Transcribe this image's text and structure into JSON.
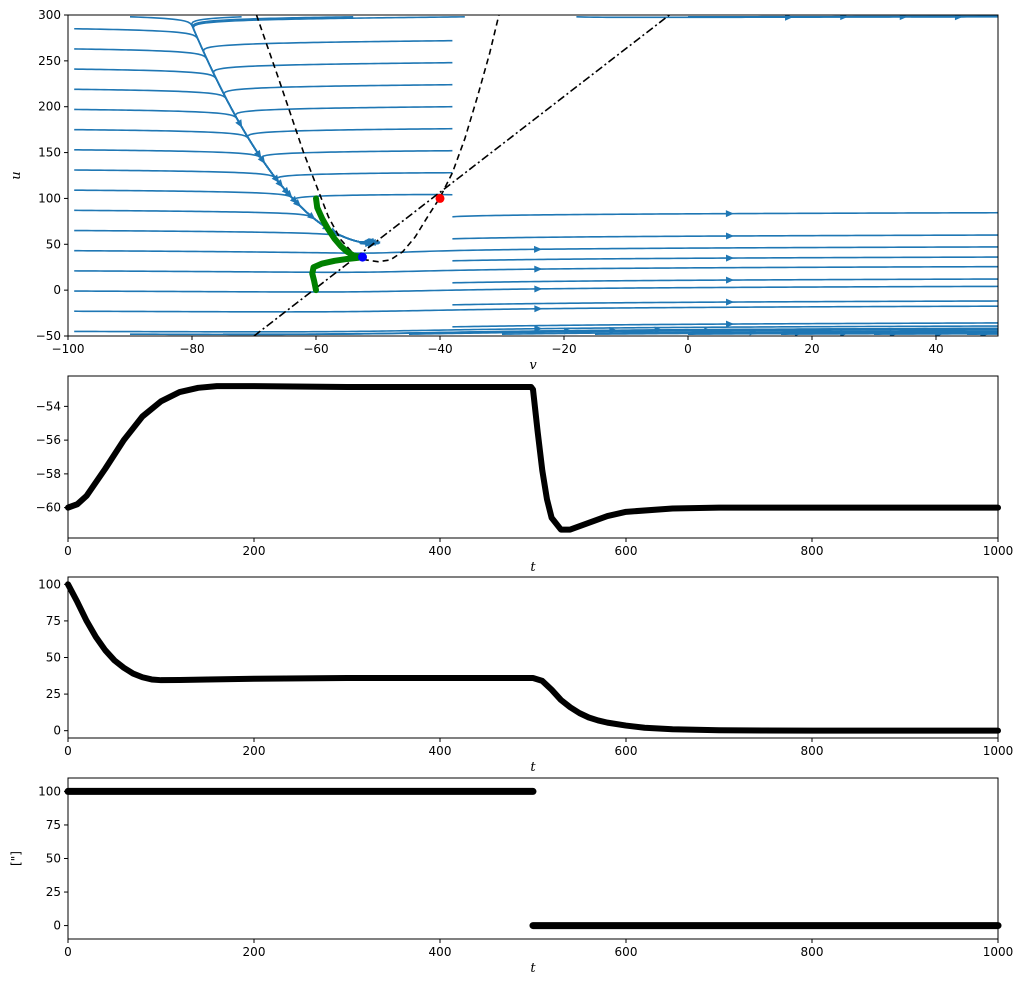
{
  "chart_data": [
    {
      "id": "phase",
      "type": "streamplot",
      "xlabel": "v",
      "ylabel": "u",
      "xlim": [
        -100,
        50
      ],
      "ylim": [
        -50,
        300
      ],
      "xticks": [
        -100,
        -80,
        -60,
        -40,
        -20,
        0,
        20,
        40
      ],
      "yticks": [
        -50,
        0,
        50,
        100,
        150,
        200,
        250,
        300
      ],
      "stream_color": "#1f77b4",
      "v_nullcline": {
        "style": "dashed",
        "color": "#000000",
        "points": [
          [
            -69.6,
            300
          ],
          [
            -66,
            230
          ],
          [
            -62,
            150
          ],
          [
            -58,
            80
          ],
          [
            -56,
            55
          ],
          [
            -54,
            40
          ],
          [
            -52,
            33
          ],
          [
            -50,
            31
          ],
          [
            -48,
            33
          ],
          [
            -46,
            42
          ],
          [
            -44,
            58
          ],
          [
            -42,
            80
          ],
          [
            -40,
            101
          ],
          [
            -38,
            128
          ],
          [
            -36,
            165
          ],
          [
            -34,
            210
          ],
          [
            -32,
            258
          ],
          [
            -30.5,
            300
          ]
        ]
      },
      "u_nullcline": {
        "style": "dashdot",
        "color": "#000000",
        "points": [
          [
            -70,
            -50
          ],
          [
            -3,
            300
          ]
        ]
      },
      "fixed_points": [
        {
          "v": -52.5,
          "u": 36,
          "color": "#0000ff"
        },
        {
          "v": -40,
          "u": 100,
          "color": "#ff0000"
        }
      ],
      "trajectory": {
        "color": "#008000",
        "points": [
          [
            -60,
            100
          ],
          [
            -59.8,
            90
          ],
          [
            -59,
            78
          ],
          [
            -58,
            66
          ],
          [
            -57,
            56
          ],
          [
            -56,
            48
          ],
          [
            -55,
            42
          ],
          [
            -54,
            38
          ],
          [
            -53,
            36.5
          ],
          [
            -52.5,
            36
          ],
          [
            -53.5,
            35
          ],
          [
            -55,
            34
          ],
          [
            -57,
            32
          ],
          [
            -59,
            29
          ],
          [
            -60.4,
            25
          ],
          [
            -60.6,
            18
          ],
          [
            -60.3,
            10
          ],
          [
            -60,
            0
          ]
        ]
      }
    },
    {
      "id": "v_t",
      "type": "line",
      "xlabel": "t",
      "ylabel": "",
      "xlim": [
        0,
        1000
      ],
      "ylim": [
        -61.8,
        -52.2
      ],
      "xticks": [
        0,
        200,
        400,
        600,
        800,
        1000
      ],
      "yticks": [
        -60,
        -58,
        -56,
        -54
      ],
      "color": "#000000",
      "points": [
        [
          0,
          -60
        ],
        [
          10,
          -59.8
        ],
        [
          20,
          -59.3
        ],
        [
          40,
          -57.7
        ],
        [
          60,
          -56.0
        ],
        [
          80,
          -54.6
        ],
        [
          100,
          -53.7
        ],
        [
          120,
          -53.15
        ],
        [
          140,
          -52.9
        ],
        [
          160,
          -52.8
        ],
        [
          200,
          -52.8
        ],
        [
          300,
          -52.85
        ],
        [
          400,
          -52.85
        ],
        [
          498,
          -52.85
        ],
        [
          500,
          -53.0
        ],
        [
          505,
          -55.5
        ],
        [
          510,
          -57.8
        ],
        [
          515,
          -59.5
        ],
        [
          520,
          -60.6
        ],
        [
          530,
          -61.3
        ],
        [
          540,
          -61.3
        ],
        [
          560,
          -60.9
        ],
        [
          580,
          -60.5
        ],
        [
          600,
          -60.25
        ],
        [
          650,
          -60.05
        ],
        [
          700,
          -60.0
        ],
        [
          1000,
          -60.0
        ]
      ]
    },
    {
      "id": "u_t",
      "type": "line",
      "xlabel": "t",
      "ylabel": "",
      "xlim": [
        0,
        1000
      ],
      "ylim": [
        -5,
        105
      ],
      "xticks": [
        0,
        200,
        400,
        600,
        800,
        1000
      ],
      "yticks": [
        0,
        25,
        50,
        75,
        100
      ],
      "color": "#000000",
      "points": [
        [
          0,
          100
        ],
        [
          10,
          88
        ],
        [
          20,
          75
        ],
        [
          30,
          64
        ],
        [
          40,
          55
        ],
        [
          50,
          48
        ],
        [
          60,
          43
        ],
        [
          70,
          39
        ],
        [
          80,
          36.5
        ],
        [
          90,
          35
        ],
        [
          100,
          34.5
        ],
        [
          120,
          34.6
        ],
        [
          150,
          35
        ],
        [
          200,
          35.5
        ],
        [
          300,
          36
        ],
        [
          400,
          36
        ],
        [
          500,
          36
        ],
        [
          510,
          34
        ],
        [
          520,
          28
        ],
        [
          530,
          21
        ],
        [
          540,
          16
        ],
        [
          550,
          12
        ],
        [
          560,
          9
        ],
        [
          570,
          7
        ],
        [
          580,
          5.5
        ],
        [
          600,
          3.5
        ],
        [
          620,
          2
        ],
        [
          650,
          1
        ],
        [
          700,
          0.3
        ],
        [
          800,
          0
        ],
        [
          1000,
          0
        ]
      ]
    },
    {
      "id": "I_t",
      "type": "scatter",
      "xlabel": "t",
      "ylabel": "[\"]",
      "xlim": [
        0,
        1000
      ],
      "ylim": [
        -10,
        110
      ],
      "xticks": [
        0,
        200,
        400,
        600,
        800,
        1000
      ],
      "yticks": [
        0,
        25,
        50,
        75,
        100
      ],
      "color": "#000000",
      "segments": [
        {
          "from": 0,
          "to": 500,
          "value": 100
        },
        {
          "from": 500,
          "to": 1000,
          "value": 0
        }
      ]
    }
  ]
}
